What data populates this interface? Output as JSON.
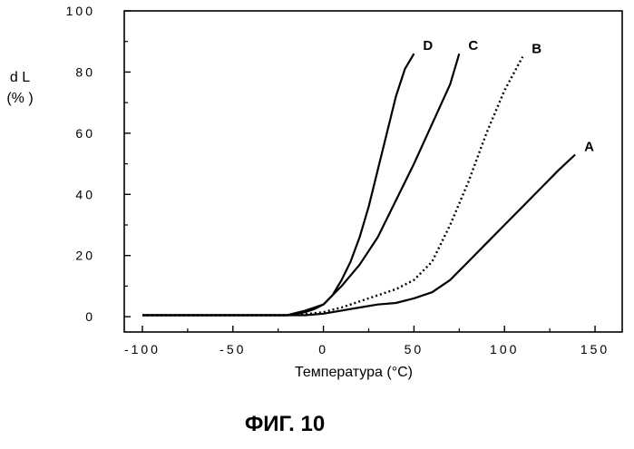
{
  "figure": {
    "caption": "ФИГ. 10"
  },
  "chart_data": {
    "type": "line",
    "title": "",
    "xlabel": "Температура (°С)",
    "ylabel": "d L\n(% )",
    "xlim": [
      -110,
      165
    ],
    "ylim": [
      -5,
      100
    ],
    "xticks": [
      -100,
      -50,
      0,
      50,
      100,
      150
    ],
    "xtick_labels": [
      "-100",
      "-50",
      "0",
      "50",
      "100",
      "150"
    ],
    "yticks": [
      0,
      20,
      40,
      60,
      80,
      100
    ],
    "ytick_labels": [
      "0",
      "20",
      "40",
      "60",
      "80",
      "100"
    ],
    "grid": false,
    "legend": "none (series labelled directly at line ends)",
    "line_color": "#000000",
    "series": [
      {
        "name": "A",
        "style": "solid",
        "x": [
          -100,
          -50,
          -10,
          0,
          10,
          20,
          30,
          40,
          50,
          60,
          70,
          80,
          90,
          100,
          110,
          120,
          130,
          139
        ],
        "y": [
          0.5,
          0.5,
          0.5,
          1,
          2,
          3,
          4,
          4.5,
          6,
          8,
          12,
          18,
          24,
          30,
          36,
          42,
          48,
          53
        ]
      },
      {
        "name": "B",
        "style": "dotted",
        "x": [
          -100,
          -50,
          -20,
          -10,
          0,
          10,
          20,
          30,
          40,
          50,
          60,
          70,
          80,
          90,
          100,
          110
        ],
        "y": [
          0.5,
          0.5,
          0.5,
          0.8,
          1.5,
          3,
          5,
          7,
          9,
          12,
          18,
          30,
          44,
          60,
          74,
          85
        ]
      },
      {
        "name": "C",
        "style": "solid",
        "x": [
          -100,
          -50,
          -20,
          -10,
          -5,
          0,
          5,
          10,
          20,
          30,
          40,
          50,
          60,
          70,
          75
        ],
        "y": [
          0.5,
          0.5,
          0.5,
          1.5,
          2.5,
          4,
          7,
          10,
          17,
          26,
          38,
          50,
          63,
          76,
          86
        ]
      },
      {
        "name": "D",
        "style": "solid",
        "x": [
          -100,
          -50,
          -20,
          -10,
          -5,
          0,
          5,
          10,
          15,
          20,
          25,
          30,
          35,
          40,
          45,
          50
        ],
        "y": [
          0.5,
          0.5,
          0.5,
          2,
          3,
          4,
          7,
          12,
          18,
          26,
          36,
          48,
          60,
          72,
          81,
          86
        ]
      }
    ]
  }
}
